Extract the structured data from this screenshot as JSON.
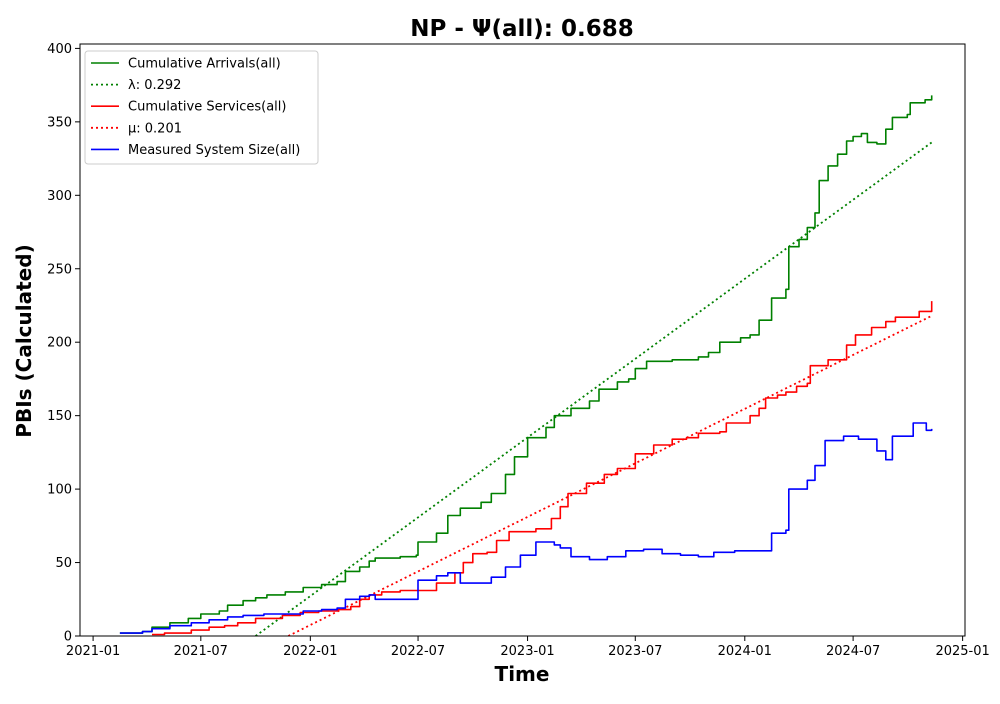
{
  "chart_data": {
    "type": "line",
    "title": "NP -  Ψ(all): 0.688",
    "xlabel": "Time",
    "ylabel": "PBIs (Calculated)",
    "x_date_range": [
      "2020-12-10",
      "2025-01-05"
    ],
    "ylim": [
      0,
      403
    ],
    "yticks": [
      0,
      50,
      100,
      150,
      200,
      250,
      300,
      350,
      400
    ],
    "xticks": [
      "2021-01",
      "2021-07",
      "2022-01",
      "2022-07",
      "2023-01",
      "2023-07",
      "2024-01",
      "2024-07",
      "2025-01"
    ],
    "grid": false,
    "legend_position": "top-left",
    "series": [
      {
        "name": "Cumulative Arrivals(all)",
        "color": "#008000",
        "style": "solid",
        "points": [
          [
            "2021-02-15",
            2
          ],
          [
            "2021-03-25",
            3
          ],
          [
            "2021-04-10",
            6
          ],
          [
            "2021-05-10",
            9
          ],
          [
            "2021-06-10",
            12
          ],
          [
            "2021-07-01",
            15
          ],
          [
            "2021-08-01",
            17
          ],
          [
            "2021-08-15",
            21
          ],
          [
            "2021-09-10",
            24
          ],
          [
            "2021-10-01",
            26
          ],
          [
            "2021-10-20",
            28
          ],
          [
            "2021-11-20",
            30
          ],
          [
            "2021-12-20",
            33
          ],
          [
            "2022-01-20",
            35
          ],
          [
            "2022-02-15",
            37
          ],
          [
            "2022-03-01",
            44
          ],
          [
            "2022-03-25",
            47
          ],
          [
            "2022-04-10",
            51
          ],
          [
            "2022-04-20",
            53
          ],
          [
            "2022-06-01",
            54
          ],
          [
            "2022-06-28",
            55
          ],
          [
            "2022-07-01",
            64
          ],
          [
            "2022-08-01",
            70
          ],
          [
            "2022-08-20",
            82
          ],
          [
            "2022-09-10",
            87
          ],
          [
            "2022-10-15",
            91
          ],
          [
            "2022-11-01",
            97
          ],
          [
            "2022-11-25",
            110
          ],
          [
            "2022-12-10",
            122
          ],
          [
            "2023-01-01",
            135
          ],
          [
            "2023-02-01",
            142
          ],
          [
            "2023-02-15",
            150
          ],
          [
            "2023-03-15",
            155
          ],
          [
            "2023-04-15",
            160
          ],
          [
            "2023-05-01",
            168
          ],
          [
            "2023-06-01",
            173
          ],
          [
            "2023-06-20",
            175
          ],
          [
            "2023-07-01",
            182
          ],
          [
            "2023-07-20",
            187
          ],
          [
            "2023-09-01",
            188
          ],
          [
            "2023-10-15",
            190
          ],
          [
            "2023-11-01",
            193
          ],
          [
            "2023-11-20",
            200
          ],
          [
            "2023-12-25",
            203
          ],
          [
            "2024-01-10",
            205
          ],
          [
            "2024-01-25",
            215
          ],
          [
            "2024-02-15",
            230
          ],
          [
            "2024-03-10",
            236
          ],
          [
            "2024-03-15",
            265
          ],
          [
            "2024-04-01",
            270
          ],
          [
            "2024-04-15",
            278
          ],
          [
            "2024-04-28",
            288
          ],
          [
            "2024-05-05",
            310
          ],
          [
            "2024-05-20",
            320
          ],
          [
            "2024-06-05",
            328
          ],
          [
            "2024-06-20",
            337
          ],
          [
            "2024-07-01",
            340
          ],
          [
            "2024-07-15",
            342
          ],
          [
            "2024-07-25",
            336
          ],
          [
            "2024-08-10",
            335
          ],
          [
            "2024-08-25",
            345
          ],
          [
            "2024-09-05",
            353
          ],
          [
            "2024-09-30",
            355
          ],
          [
            "2024-10-05",
            363
          ],
          [
            "2024-10-30",
            365
          ],
          [
            "2024-11-10",
            368
          ]
        ]
      },
      {
        "name": "λ: 0.292",
        "color": "#008000",
        "style": "dotted",
        "points": [
          [
            "2021-10-01",
            0
          ],
          [
            "2024-11-10",
            336
          ]
        ]
      },
      {
        "name": "Cumulative Services(all)",
        "color": "#ff0000",
        "style": "solid",
        "points": [
          [
            "2021-04-10",
            1
          ],
          [
            "2021-05-01",
            2
          ],
          [
            "2021-06-15",
            4
          ],
          [
            "2021-07-15",
            6
          ],
          [
            "2021-08-10",
            7
          ],
          [
            "2021-09-01",
            9
          ],
          [
            "2021-10-01",
            12
          ],
          [
            "2021-11-15",
            14
          ],
          [
            "2021-12-15",
            16
          ],
          [
            "2022-01-15",
            17
          ],
          [
            "2022-02-15",
            18
          ],
          [
            "2022-03-10",
            20
          ],
          [
            "2022-03-25",
            25
          ],
          [
            "2022-04-10",
            28
          ],
          [
            "2022-05-01",
            30
          ],
          [
            "2022-06-01",
            31
          ],
          [
            "2022-07-20",
            31
          ],
          [
            "2022-08-01",
            36
          ],
          [
            "2022-09-01",
            43
          ],
          [
            "2022-09-15",
            50
          ],
          [
            "2022-10-01",
            56
          ],
          [
            "2022-10-25",
            57
          ],
          [
            "2022-11-10",
            65
          ],
          [
            "2022-12-01",
            71
          ],
          [
            "2023-01-15",
            73
          ],
          [
            "2023-02-10",
            80
          ],
          [
            "2023-02-25",
            88
          ],
          [
            "2023-03-10",
            97
          ],
          [
            "2023-04-10",
            104
          ],
          [
            "2023-05-10",
            110
          ],
          [
            "2023-06-01",
            114
          ],
          [
            "2023-07-01",
            124
          ],
          [
            "2023-08-01",
            130
          ],
          [
            "2023-09-01",
            134
          ],
          [
            "2023-09-25",
            135
          ],
          [
            "2023-10-15",
            138
          ],
          [
            "2023-11-20",
            139
          ],
          [
            "2023-12-01",
            145
          ],
          [
            "2024-01-10",
            150
          ],
          [
            "2024-01-25",
            155
          ],
          [
            "2024-02-05",
            162
          ],
          [
            "2024-02-25",
            164
          ],
          [
            "2024-03-10",
            166
          ],
          [
            "2024-03-28",
            170
          ],
          [
            "2024-04-15",
            172
          ],
          [
            "2024-04-20",
            184
          ],
          [
            "2024-05-20",
            188
          ],
          [
            "2024-06-20",
            198
          ],
          [
            "2024-07-05",
            205
          ],
          [
            "2024-08-01",
            210
          ],
          [
            "2024-08-25",
            214
          ],
          [
            "2024-09-10",
            217
          ],
          [
            "2024-10-20",
            221
          ],
          [
            "2024-11-10",
            228
          ]
        ]
      },
      {
        "name": "μ: 0.201",
        "color": "#ff0000",
        "style": "dotted",
        "points": [
          [
            "2021-11-25",
            0
          ],
          [
            "2024-11-10",
            218
          ]
        ]
      },
      {
        "name": "Measured System Size(all)",
        "color": "#0000ff",
        "style": "solid",
        "points": [
          [
            "2021-02-15",
            2
          ],
          [
            "2021-03-25",
            3
          ],
          [
            "2021-04-10",
            5
          ],
          [
            "2021-05-10",
            7
          ],
          [
            "2021-06-15",
            9
          ],
          [
            "2021-07-15",
            11
          ],
          [
            "2021-08-15",
            13
          ],
          [
            "2021-09-10",
            14
          ],
          [
            "2021-10-15",
            15
          ],
          [
            "2021-11-15",
            15
          ],
          [
            "2021-12-20",
            17
          ],
          [
            "2022-01-20",
            18
          ],
          [
            "2022-02-15",
            19
          ],
          [
            "2022-03-01",
            25
          ],
          [
            "2022-03-25",
            27
          ],
          [
            "2022-04-10",
            28
          ],
          [
            "2022-04-20",
            25
          ],
          [
            "2022-06-10",
            25
          ],
          [
            "2022-06-28",
            25
          ],
          [
            "2022-07-01",
            38
          ],
          [
            "2022-08-01",
            41
          ],
          [
            "2022-08-20",
            43
          ],
          [
            "2022-09-10",
            36
          ],
          [
            "2022-10-15",
            36
          ],
          [
            "2022-11-01",
            40
          ],
          [
            "2022-11-25",
            47
          ],
          [
            "2022-12-20",
            55
          ],
          [
            "2023-01-15",
            64
          ],
          [
            "2023-02-15",
            62
          ],
          [
            "2023-02-25",
            60
          ],
          [
            "2023-03-15",
            54
          ],
          [
            "2023-04-15",
            52
          ],
          [
            "2023-05-15",
            54
          ],
          [
            "2023-06-15",
            58
          ],
          [
            "2023-07-15",
            59
          ],
          [
            "2023-08-15",
            56
          ],
          [
            "2023-09-15",
            55
          ],
          [
            "2023-10-15",
            54
          ],
          [
            "2023-11-10",
            57
          ],
          [
            "2023-12-15",
            58
          ],
          [
            "2024-01-15",
            58
          ],
          [
            "2024-02-15",
            70
          ],
          [
            "2024-03-10",
            72
          ],
          [
            "2024-03-15",
            100
          ],
          [
            "2024-04-15",
            106
          ],
          [
            "2024-04-28",
            116
          ],
          [
            "2024-05-15",
            133
          ],
          [
            "2024-06-15",
            136
          ],
          [
            "2024-07-10",
            134
          ],
          [
            "2024-08-10",
            126
          ],
          [
            "2024-08-25",
            120
          ],
          [
            "2024-09-05",
            136
          ],
          [
            "2024-10-10",
            145
          ],
          [
            "2024-11-01",
            140
          ],
          [
            "2024-11-10",
            141
          ]
        ]
      }
    ]
  }
}
